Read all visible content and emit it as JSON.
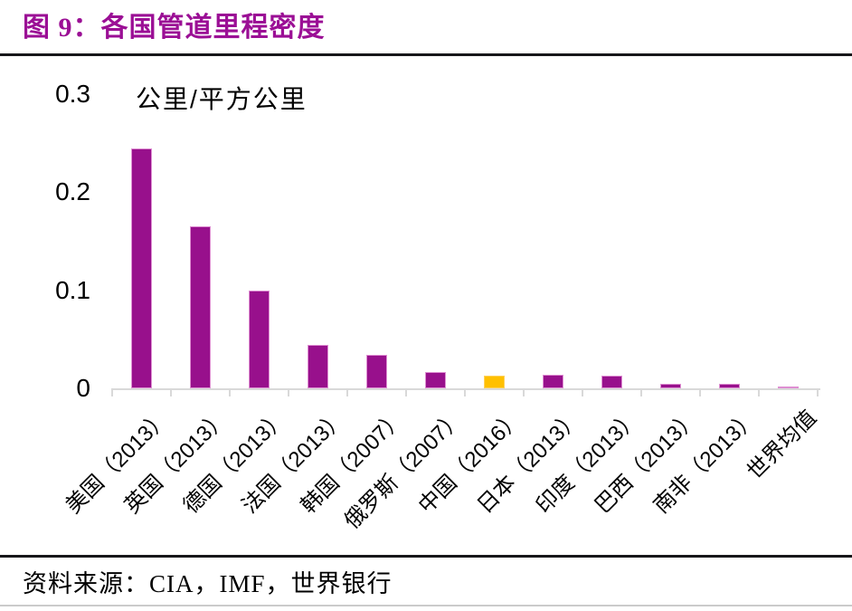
{
  "page": {
    "figure_title": "图 9：各国管道里程密度",
    "source": "资料来源：CIA，IMF，世界银行"
  },
  "chart_data": {
    "type": "bar",
    "title": "各国管道里程密度",
    "unit_label": "公里/平方公里",
    "categories": [
      "美国（2013）",
      "英国（2013）",
      "德国（2013）",
      "法国（2013）",
      "韩国（2007）",
      "俄罗斯（2007）",
      "中国（2016）",
      "日本（2013）",
      "印度（2013）",
      "巴西（2013）",
      "南非（2013）",
      "世界均值"
    ],
    "values": [
      0.245,
      0.165,
      0.1,
      0.044,
      0.034,
      0.017,
      0.013,
      0.014,
      0.013,
      0.005,
      0.005,
      0.002
    ],
    "highlight_index": 6,
    "highlight_category": "中国（2016）",
    "xlabel": "",
    "ylabel": "公里/平方公里",
    "ylim": [
      0,
      0.3
    ],
    "yticks": [
      0,
      0.1,
      0.2,
      0.3
    ],
    "ytick_labels": [
      "0",
      "0.1",
      "0.2",
      "0.3"
    ],
    "grid": false,
    "legend": false
  },
  "colors": {
    "title_purple": "#9B0F95",
    "bar_purple": "#98108C",
    "bar_purple_border": "#DE8FD2",
    "bar_yellow": "#FFC000",
    "bar_yellow_border": "#FFD15C",
    "axis_gray": "#D9D9D9",
    "rule_dark": "#17171A",
    "rule_light": "#CBCBCB",
    "text_black": "#000000"
  }
}
